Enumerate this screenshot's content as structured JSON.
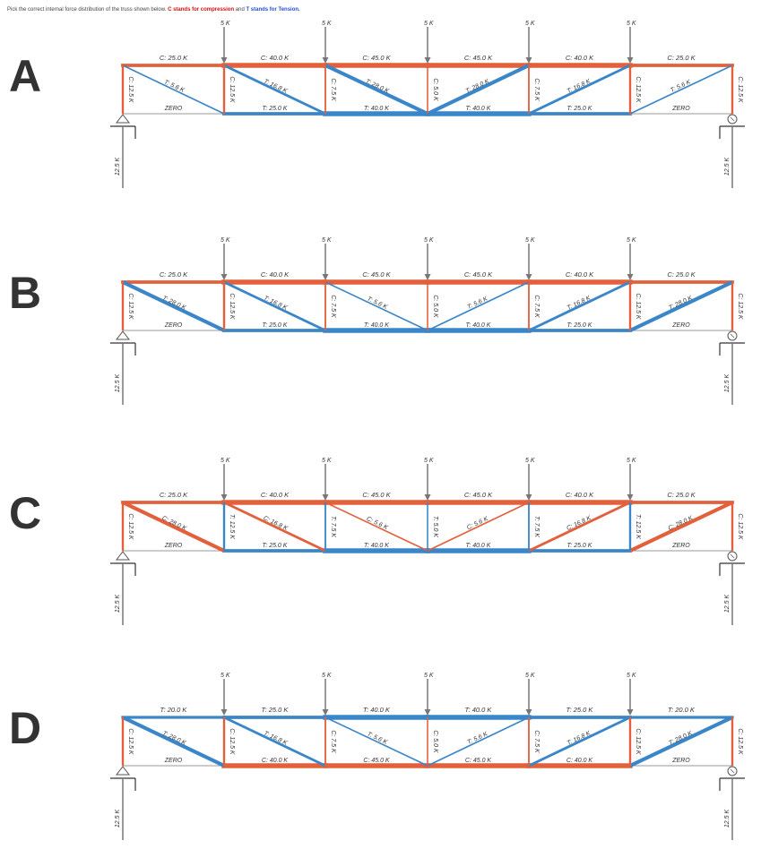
{
  "question": {
    "prefix": "Pick the correct internal force distribution of the truss shown below.",
    "compression_note": "C stands for compression",
    "join_word": "and",
    "tension_note": "T stands for Tension."
  },
  "colors": {
    "compression": "#e2603c",
    "tension": "#3a86c8",
    "zero": "#9a9a9a",
    "load": "#777777"
  },
  "load_label": "5 K",
  "reaction_label": "12.5 K",
  "options": [
    {
      "letter": "A",
      "top_chord": [
        "C: 25.0 K",
        "C: 40.0 K",
        "C: 45.0 K",
        "C: 45.0 K",
        "C: 40.0 K",
        "C: 25.0 K"
      ],
      "bottom_chord": [
        "ZERO",
        "T: 25.0 K",
        "T: 40.0 K",
        "T: 40.0 K",
        "T: 25.0 K",
        "ZERO"
      ],
      "verticals": [
        "C: 12.5 K",
        "C: 12.5 K",
        "C: 7.5 K",
        "C: 5.0 K",
        "C: 7.5 K",
        "C: 12.5 K",
        "C: 12.5 K"
      ],
      "diagonals": [
        "T: 5.6 K",
        "T: 16.8 K",
        "T: 28.0 K",
        "T: 28.0 K",
        "T: 16.8 K",
        "T: 5.6 K"
      ],
      "diag_dir": [
        "down",
        "down",
        "down",
        "up",
        "up",
        "up"
      ]
    },
    {
      "letter": "B",
      "top_chord": [
        "C: 25.0 K",
        "C: 40.0 K",
        "C: 45.0 K",
        "C: 45.0 K",
        "C: 40.0 K",
        "C: 25.0 K"
      ],
      "bottom_chord": [
        "ZERO",
        "T: 25.0 K",
        "T: 40.0 K",
        "T: 40.0 K",
        "T: 25.0 K",
        "ZERO"
      ],
      "verticals": [
        "C: 12.5 K",
        "C: 12.5 K",
        "C: 7.5 K",
        "C: 5.0 K",
        "C: 7.5 K",
        "C: 12.5 K",
        "C: 12.5 K"
      ],
      "diagonals": [
        "T: 28.0 K",
        "T: 16.8 K",
        "T: 5.6 K",
        "T: 5.6 K",
        "T: 16.8 K",
        "T: 28.0 K"
      ],
      "diag_dir": [
        "down",
        "down",
        "down",
        "up",
        "up",
        "up"
      ]
    },
    {
      "letter": "C",
      "top_chord": [
        "C: 25.0 K",
        "C: 40.0 K",
        "C: 45.0 K",
        "C: 45.0 K",
        "C: 40.0 K",
        "C: 25.0 K"
      ],
      "bottom_chord": [
        "ZERO",
        "T: 25.0 K",
        "T: 40.0 K",
        "T: 40.0 K",
        "T: 25.0 K",
        "ZERO"
      ],
      "verticals": [
        "C: 12.5 K",
        "T: 12.5 K",
        "T: 7.5 K",
        "T: 5.0 K",
        "T: 7.5 K",
        "T: 12.5 K",
        "C: 12.5 K"
      ],
      "diagonals": [
        "C: 28.0 K",
        "C: 16.8 K",
        "C: 5.6 K",
        "C: 5.6 K",
        "C: 16.8 K",
        "C: 28.0 K"
      ],
      "diag_dir": [
        "down",
        "down",
        "down",
        "up",
        "up",
        "up"
      ]
    },
    {
      "letter": "D",
      "top_chord": [
        "T: 20.0 K",
        "T: 25.0 K",
        "T: 40.0 K",
        "T: 40.0 K",
        "T: 25.0 K",
        "T: 20.0 K"
      ],
      "bottom_chord": [
        "ZERO",
        "C: 40.0 K",
        "C: 45.0 K",
        "C: 45.0 K",
        "C: 40.0 K",
        "ZERO"
      ],
      "verticals": [
        "C: 12.5 K",
        "C: 12.5 K",
        "C: 7.5 K",
        "C: 5.0 K",
        "C: 7.5 K",
        "C: 12.5 K",
        "C: 12.5 K"
      ],
      "diagonals": [
        "T: 28.0 K",
        "T: 16.8 K",
        "T: 5.6 K",
        "T: 5.6 K",
        "T: 16.8 K",
        "T: 28.0 K"
      ],
      "diag_dir": [
        "down",
        "down",
        "down",
        "up",
        "up",
        "up"
      ]
    }
  ]
}
